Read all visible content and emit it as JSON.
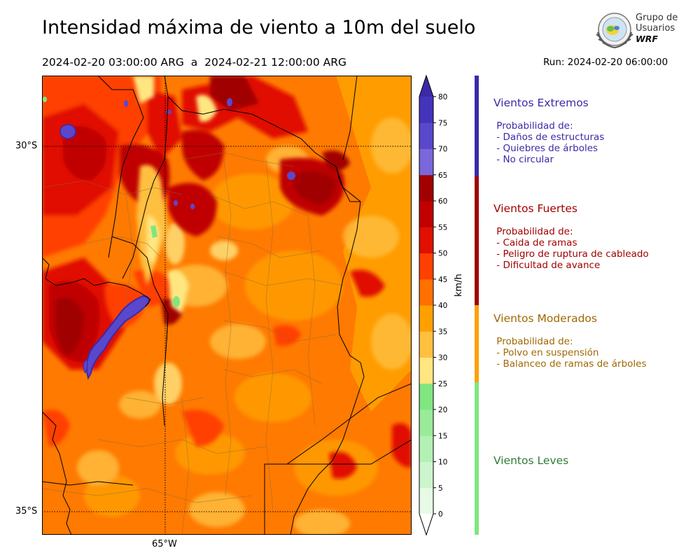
{
  "header": {
    "title": "Intensidad máxima de viento a 10m del suelo",
    "period": "2024-02-20 03:00:00 ARG  a  2024-02-21 12:00:00 ARG",
    "run": "Run: 2024-02-20 06:00:00"
  },
  "logo": {
    "line1": "Grupo de",
    "line2": "Usuarios",
    "line3": "WRF"
  },
  "map": {
    "lat_labels": [
      "30°S",
      "35°S"
    ],
    "lon_labels": [
      "65°W"
    ]
  },
  "colorbar": {
    "unit": "km/h",
    "ticks": [
      "0",
      "5",
      "10",
      "15",
      "20",
      "25",
      "30",
      "35",
      "40",
      "45",
      "50",
      "55",
      "60",
      "65",
      "70",
      "75",
      "80"
    ],
    "colors": [
      "#e6fae6",
      "#cdf5cd",
      "#b3f0b3",
      "#99eb99",
      "#80e680",
      "#ffe680",
      "#ffc040",
      "#ffa000",
      "#ff7000",
      "#ff4000",
      "#e01000",
      "#c00000",
      "#a00000",
      "#7a67db",
      "#5a48cc",
      "#4433bb",
      "#3a2aa8"
    ]
  },
  "categories": [
    {
      "title": "Vientos Extremos",
      "desc": " Probabilidad de:\n - Daños de estructuras\n - Quiebres de árboles\n - No circular",
      "color": "#3a2aa8"
    },
    {
      "title": "Vientos Fuertes",
      "desc": " Probabilidad de:\n - Caida de ramas\n - Peligro de ruptura de cableado\n - Dificultad de avance",
      "color": "#a00000"
    },
    {
      "title": "Vientos Moderados",
      "desc": " Probabilidad de:\n - Polvo en suspensión\n - Balanceo de ramas de árboles",
      "color": "#a06800"
    },
    {
      "title": "Vientos Leves",
      "desc": "",
      "color": "#2e7d32"
    }
  ]
}
